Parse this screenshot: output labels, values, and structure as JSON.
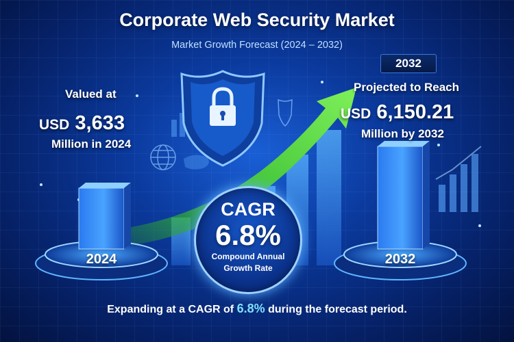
{
  "header": {
    "title": "Corporate Web Security Market",
    "subtitle": "Market Growth Forecast (2024 – 2032)"
  },
  "left_callout": {
    "line1": "Valued at",
    "currency": "USD",
    "amount": "3,633",
    "line3": "Million in 2024"
  },
  "right_callout": {
    "year_badge": "2032",
    "line1": "Projected to Reach",
    "currency": "USD",
    "amount": "6,150.21",
    "line3": "Million by 2032"
  },
  "cagr_badge": {
    "heading": "CAGR",
    "value": "6.8%",
    "line1": "Compound Annual",
    "line2": "Growth Rate"
  },
  "footer": {
    "prefix": "Expanding at a CAGR of",
    "highlight": "6.8%",
    "suffix": "during the forecast period."
  },
  "chart_data": {
    "type": "bar",
    "categories": [
      "2024",
      "2032"
    ],
    "values": [
      3633,
      6150.21
    ],
    "unit": "USD Million",
    "cagr_percent": 6.8
  },
  "icons": [
    "shield-lock-icon",
    "globe-icon",
    "growth-arrow-icon"
  ],
  "colors": {
    "background": "#0b3a9e",
    "accent": "#7ee0ff",
    "arrow": "#5fe04a"
  }
}
